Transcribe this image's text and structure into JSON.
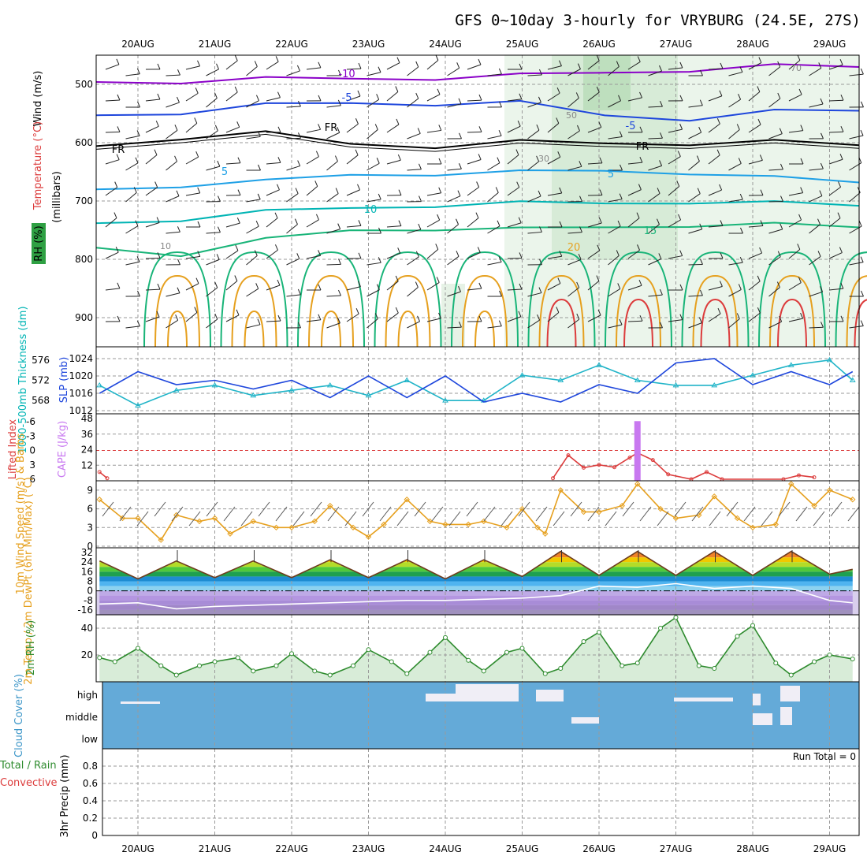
{
  "title": "GFS 0~10day 3-hourly for VRYBURG (24.5E, 27S)",
  "dates": [
    "20AUG",
    "21AUG",
    "22AUG",
    "23AUG",
    "24AUG",
    "25AUG",
    "26AUG",
    "27AUG",
    "28AUG",
    "29AUG"
  ],
  "colors": {
    "purple": "#8a00c8",
    "blue": "#1e46dc",
    "cyan": "#1ea0e6",
    "teal": "#00b4b4",
    "green": "#18b478",
    "orange": "#e6a01e",
    "red": "#dc3c3c",
    "cloud": "#64aad8",
    "slp": "#1e46dc",
    "thick": "#20b4c8"
  },
  "chart_data": [
    {
      "type": "line",
      "panel": "upper-air cross-section",
      "ylabel_wind": "Wind (m/s)",
      "ylabel_temp": "Temperature (°C)",
      "ylabel_rh": "RH (%)",
      "ylabel_pressure": "(millibars)",
      "y_ticks": [
        "500",
        "600",
        "700",
        "800",
        "900"
      ],
      "ylim": [
        450,
        950
      ],
      "isotherm_labels": [
        "-10",
        "-5",
        "-5",
        "FR",
        "FR",
        "FR",
        "5",
        "5",
        "10",
        "15",
        "20"
      ],
      "rh_labels": [
        "10",
        "30",
        "50",
        "70"
      ],
      "series": [
        {
          "name": "-10",
          "values": [
            496,
            494,
            492,
            490,
            488,
            486,
            480,
            474,
            470,
            470
          ]
        },
        {
          "name": "-5",
          "values": [
            553,
            547,
            537,
            532,
            532,
            533,
            553,
            558,
            548,
            545
          ]
        },
        {
          "name": "FR",
          "values": [
            606,
            590,
            585,
            602,
            605,
            600,
            601,
            600,
            600,
            604
          ]
        },
        {
          "name": "5",
          "values": [
            680,
            672,
            668,
            655,
            652,
            652,
            648,
            650,
            662,
            668
          ]
        },
        {
          "name": "10",
          "values": [
            738,
            730,
            720,
            712,
            706,
            705,
            704,
            700,
            705,
            708
          ]
        },
        {
          "name": "15",
          "values": [
            780,
            790,
            768,
            750,
            746,
            750,
            745,
            740,
            742,
            745
          ]
        }
      ]
    },
    {
      "type": "line",
      "panel": "slp-thickness",
      "ylabel_left": "1000-500mb Thickness (dm)",
      "ylabel_right": "SLP (mb)",
      "y_ticks_left": [
        "568",
        "572",
        "576"
      ],
      "y_ticks_right": [
        "1012",
        "1016",
        "1020",
        "1024"
      ],
      "series": [
        {
          "name": "SLP (mb)",
          "x": [
            19.5,
            20.0,
            20.5,
            21.0,
            21.5,
            22.0,
            22.5,
            23.0,
            23.5,
            24.0,
            24.5,
            25.0,
            25.5,
            26.0,
            26.5,
            27.0,
            27.5,
            28.0,
            28.5,
            29.0,
            29.3
          ],
          "values": [
            1016,
            1021,
            1018,
            1019,
            1017,
            1019,
            1015,
            1020,
            1015,
            1020,
            1014,
            1016,
            1014,
            1018,
            1016,
            1023,
            1024,
            1018,
            1021,
            1018,
            1021
          ]
        },
        {
          "name": "Thickness (dm)",
          "x": [
            19.5,
            20.0,
            20.5,
            21.0,
            21.5,
            22.0,
            22.5,
            23.0,
            23.5,
            24.0,
            24.5,
            25.0,
            25.5,
            26.0,
            26.5,
            27.0,
            27.5,
            28.0,
            28.5,
            29.0,
            29.3
          ],
          "values": [
            571,
            567,
            570,
            571,
            569,
            570,
            571,
            569,
            572,
            568,
            568,
            573,
            572,
            575,
            572,
            571,
            571,
            573,
            575,
            576,
            572
          ]
        }
      ]
    },
    {
      "type": "line",
      "panel": "cape-lifted",
      "ylabel": "Lifted Index",
      "ylabel2": "CAPE (J/kg)",
      "y_ticks_left": [
        "-6",
        "-3",
        "0",
        "3",
        "6"
      ],
      "y_ticks_right": [
        "12",
        "24",
        "36",
        "48"
      ],
      "series": [
        {
          "name": "Lifted Index",
          "x": [
            19.5,
            19.6,
            25.4,
            25.6,
            25.8,
            26.0,
            26.2,
            26.4,
            26.5,
            26.7,
            26.9,
            27.2,
            27.4,
            27.6,
            28.4,
            28.6,
            28.8
          ],
          "values": [
            4.5,
            5.8,
            5.8,
            1.0,
            3.6,
            3.0,
            3.5,
            1.5,
            0.5,
            2.0,
            5.0,
            6.0,
            4.5,
            6.0,
            6.0,
            5.2,
            5.6
          ]
        },
        {
          "name": "CAPE (J/kg)",
          "x": [
            26.5
          ],
          "values": [
            46
          ]
        }
      ]
    },
    {
      "type": "line",
      "panel": "10m-wind",
      "ylabel": "10m Wind Speed (m/s) & Barbs",
      "y_ticks": [
        "0",
        "3",
        "6",
        "9"
      ],
      "ylim": [
        0,
        10
      ],
      "series": [
        {
          "name": "Speed",
          "x": [
            19.5,
            19.8,
            20.0,
            20.3,
            20.5,
            20.8,
            21.0,
            21.2,
            21.5,
            21.8,
            22.0,
            22.3,
            22.5,
            22.8,
            23.0,
            23.2,
            23.5,
            23.8,
            24.0,
            24.3,
            24.5,
            24.8,
            25.0,
            25.2,
            25.3,
            25.5,
            25.8,
            26.0,
            26.3,
            26.5,
            26.8,
            27.0,
            27.3,
            27.5,
            27.8,
            28.0,
            28.3,
            28.5,
            28.8,
            29.0,
            29.3
          ],
          "values": [
            7.5,
            4.5,
            4.5,
            1,
            5,
            4,
            4.5,
            2,
            4,
            3,
            3,
            4,
            6.5,
            3,
            1.5,
            3.5,
            7.5,
            4,
            3.5,
            3.5,
            4,
            3,
            6,
            3,
            2,
            9,
            5.5,
            5.5,
            6.5,
            10,
            6,
            4.5,
            5,
            8,
            4.5,
            3,
            3.5,
            10,
            6.5,
            9,
            7.5
          ]
        }
      ]
    },
    {
      "type": "area",
      "panel": "2m-temp",
      "ylabel": "2m Temp / 2m DewPt (6hr Min/Max) (°C)",
      "y_ticks": [
        "-16",
        "-8",
        "0",
        "8",
        "16",
        "24",
        "32"
      ],
      "ylim": [
        -20,
        36
      ],
      "series": [
        {
          "name": "2m Temp",
          "x": [
            19.5,
            20.0,
            20.5,
            21.0,
            21.5,
            22.0,
            22.5,
            23.0,
            23.5,
            24.0,
            24.5,
            25.0,
            25.5,
            26.0,
            26.5,
            27.0,
            27.5,
            28.0,
            28.5,
            29.0,
            29.3
          ],
          "values": [
            25,
            10,
            25,
            11,
            25,
            11,
            26,
            11,
            26,
            10,
            26,
            12,
            33,
            13,
            33,
            13,
            33,
            13,
            33,
            14,
            18
          ]
        },
        {
          "name": "2m DewPt",
          "x": [
            19.5,
            20.0,
            20.5,
            21.0,
            21.5,
            22.0,
            22.5,
            23.0,
            23.5,
            24.0,
            24.5,
            25.0,
            25.5,
            26.0,
            26.5,
            27.0,
            27.5,
            28.0,
            28.5,
            29.0,
            29.3
          ],
          "values": [
            -11,
            -10,
            -15,
            -13,
            -12,
            -11,
            -10,
            -9,
            -8,
            -8,
            -7,
            -6,
            -4,
            4,
            3,
            6,
            2,
            4,
            2,
            -8,
            -10
          ]
        }
      ]
    },
    {
      "type": "area",
      "panel": "2m-rh",
      "ylabel": "2m RH (%)",
      "y_ticks": [
        "20",
        "40"
      ],
      "ylim": [
        0,
        50
      ],
      "series": [
        {
          "name": "2m RH",
          "x": [
            19.5,
            19.7,
            20.0,
            20.3,
            20.5,
            20.8,
            21.0,
            21.3,
            21.5,
            21.8,
            22.0,
            22.3,
            22.5,
            22.8,
            23.0,
            23.3,
            23.5,
            23.8,
            24.0,
            24.3,
            24.5,
            24.8,
            25.0,
            25.3,
            25.5,
            25.8,
            26.0,
            26.3,
            26.5,
            26.8,
            27.0,
            27.3,
            27.5,
            27.8,
            28.0,
            28.3,
            28.5,
            28.8,
            29.0,
            29.3
          ],
          "values": [
            18,
            15,
            25,
            12,
            5,
            12,
            15,
            18,
            8,
            12,
            21,
            8,
            5,
            12,
            24,
            15,
            6,
            22,
            33,
            16,
            8,
            22,
            25,
            6,
            10,
            30,
            37,
            12,
            14,
            40,
            48,
            12,
            10,
            34,
            42,
            14,
            5,
            15,
            20,
            17
          ]
        }
      ]
    },
    {
      "type": "bar",
      "panel": "cloud-cover",
      "ylabel": "Cloud Cover (%)",
      "y_ticks": [
        "high",
        "middle",
        "low"
      ],
      "levels": [
        "high",
        "middle",
        "low"
      ]
    },
    {
      "type": "bar",
      "panel": "precip",
      "ylabel_a": "Total / Rain",
      "ylabel_b": "Convective",
      "ylabel_c": "3hr Precip (mm)",
      "y_ticks": [
        "0",
        "0.2",
        "0.4",
        "0.6",
        "0.8"
      ],
      "ylim": [
        0,
        1
      ],
      "run_total": "Run Total = 0",
      "values": []
    }
  ]
}
